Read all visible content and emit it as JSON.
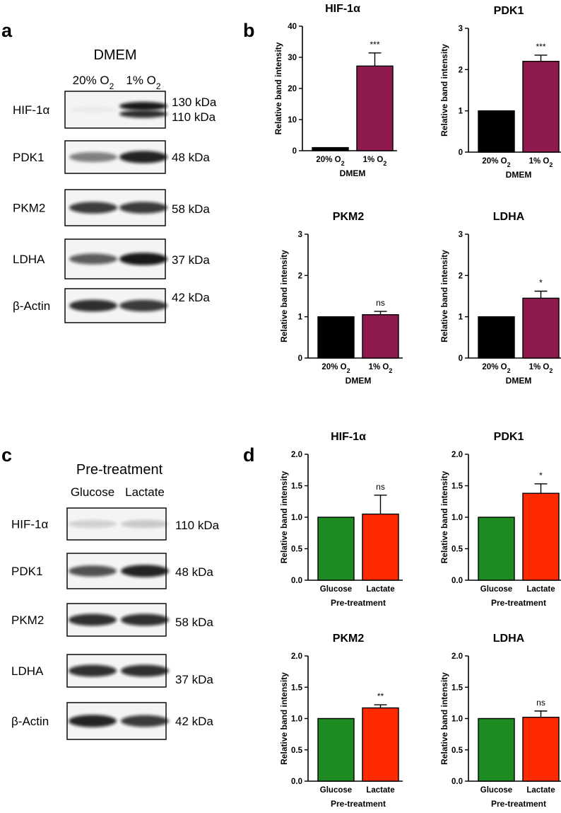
{
  "panels": {
    "a": {
      "letter": "a",
      "heading": "DMEM",
      "conditions": [
        "20% O",
        "1% O"
      ],
      "condition_subscript": "2",
      "blots": [
        {
          "name": "HIF-1α",
          "kda": [
            "130 kDa",
            "110 kDa"
          ],
          "band_strengths": [
            0.03,
            0.95
          ]
        },
        {
          "name": "PDK1",
          "kda": [
            "48 kDa"
          ],
          "band_strengths": [
            0.5,
            0.9
          ]
        },
        {
          "name": "PKM2",
          "kda": [
            "58 kDa"
          ],
          "band_strengths": [
            0.8,
            0.8
          ]
        },
        {
          "name": "LDHA",
          "kda": [
            "37 kDa"
          ],
          "band_strengths": [
            0.65,
            0.95
          ]
        },
        {
          "name": "β-Actin",
          "kda": [
            "42 kDa"
          ],
          "band_strengths": [
            0.85,
            0.8
          ]
        }
      ]
    },
    "b": {
      "letter": "b"
    },
    "c": {
      "letter": "c",
      "heading": "Pre-treatment",
      "conditions": [
        "Glucose",
        "Lactate"
      ],
      "blots": [
        {
          "name": "HIF-1α",
          "kda": [
            "110 kDa"
          ],
          "band_strengths": [
            0.15,
            0.18
          ]
        },
        {
          "name": "PDK1",
          "kda": [
            "48 kDa"
          ],
          "band_strengths": [
            0.7,
            0.9
          ]
        },
        {
          "name": "PKM2",
          "kda": [
            "58 kDa"
          ],
          "band_strengths": [
            0.85,
            0.85
          ]
        },
        {
          "name": "LDHA",
          "kda": [
            "37 kDa"
          ],
          "band_strengths": [
            0.85,
            0.85
          ]
        },
        {
          "name": "β-Actin",
          "kda": [
            "42 kDa"
          ],
          "band_strengths": [
            0.9,
            0.8
          ]
        }
      ]
    },
    "d": {
      "letter": "d"
    }
  },
  "chart_data": [
    {
      "panel": "b",
      "type": "bar",
      "title": "HIF-1α",
      "xlabel": "DMEM",
      "ylabel": "Relative band intensity",
      "categories": [
        "20% O2",
        "1% O2"
      ],
      "values": [
        1,
        27.2
      ],
      "errors": [
        0,
        4.2
      ],
      "ylim": [
        0,
        40
      ],
      "yticks": [
        "0",
        "10",
        "20",
        "30",
        "40"
      ],
      "significance": "***",
      "colors": [
        "#000000",
        "#8e1a4e"
      ]
    },
    {
      "panel": "b",
      "type": "bar",
      "title": "PDK1",
      "xlabel": "DMEM",
      "ylabel": "Relative band intensity",
      "categories": [
        "20% O2",
        "1% O2"
      ],
      "values": [
        1,
        2.2
      ],
      "errors": [
        0,
        0.15
      ],
      "ylim": [
        0,
        3
      ],
      "yticks": [
        "0",
        "1",
        "2",
        "3"
      ],
      "significance": "***",
      "colors": [
        "#000000",
        "#8e1a4e"
      ]
    },
    {
      "panel": "b",
      "type": "bar",
      "title": "PKM2",
      "xlabel": "DMEM",
      "ylabel": "Relative band intensity",
      "categories": [
        "20% O2",
        "1% O2"
      ],
      "values": [
        1,
        1.05
      ],
      "errors": [
        0,
        0.08
      ],
      "ylim": [
        0,
        3
      ],
      "yticks": [
        "0",
        "1",
        "2",
        "3"
      ],
      "significance": "ns",
      "colors": [
        "#000000",
        "#8e1a4e"
      ]
    },
    {
      "panel": "b",
      "type": "bar",
      "title": "LDHA",
      "xlabel": "DMEM",
      "ylabel": "Relative band intensity",
      "categories": [
        "20% O2",
        "1% O2"
      ],
      "values": [
        1,
        1.45
      ],
      "errors": [
        0,
        0.17
      ],
      "ylim": [
        0,
        3
      ],
      "yticks": [
        "0",
        "1",
        "2",
        "3"
      ],
      "significance": "*",
      "colors": [
        "#000000",
        "#8e1a4e"
      ]
    },
    {
      "panel": "d",
      "type": "bar",
      "title": "HIF-1α",
      "xlabel": "Pre-treatment",
      "ylabel": "Relative band intensity",
      "categories": [
        "Glucose",
        "Lactate"
      ],
      "values": [
        1,
        1.05
      ],
      "errors": [
        0,
        0.3
      ],
      "ylim": [
        0,
        2
      ],
      "yticks": [
        "0.0",
        "0.5",
        "1.0",
        "1.5",
        "2.0"
      ],
      "significance": "ns",
      "colors": [
        "#1e8a22",
        "#ff2a00"
      ]
    },
    {
      "panel": "d",
      "type": "bar",
      "title": "PDK1",
      "xlabel": "Pre-treatment",
      "ylabel": "Relative band intensity",
      "categories": [
        "Glucose",
        "Lactate"
      ],
      "values": [
        1,
        1.38
      ],
      "errors": [
        0,
        0.15
      ],
      "ylim": [
        0,
        2
      ],
      "yticks": [
        "0.0",
        "0.5",
        "1.0",
        "1.5",
        "2.0"
      ],
      "significance": "*",
      "colors": [
        "#1e8a22",
        "#ff2a00"
      ]
    },
    {
      "panel": "d",
      "type": "bar",
      "title": "PKM2",
      "xlabel": "Pre-treatment",
      "ylabel": "Relative band intensity",
      "categories": [
        "Glucose",
        "Lactate"
      ],
      "values": [
        1,
        1.17
      ],
      "errors": [
        0,
        0.05
      ],
      "ylim": [
        0,
        2
      ],
      "yticks": [
        "0.0",
        "0.5",
        "1.0",
        "1.5",
        "2.0"
      ],
      "significance": "**",
      "colors": [
        "#1e8a22",
        "#ff2a00"
      ]
    },
    {
      "panel": "d",
      "type": "bar",
      "title": "LDHA",
      "xlabel": "Pre-treatment",
      "ylabel": "Relative band intensity",
      "categories": [
        "Glucose",
        "Lactate"
      ],
      "values": [
        1,
        1.02
      ],
      "errors": [
        0,
        0.1
      ],
      "ylim": [
        0,
        2
      ],
      "yticks": [
        "0.0",
        "0.5",
        "1.0",
        "1.5",
        "2.0"
      ],
      "significance": "ns",
      "colors": [
        "#1e8a22",
        "#ff2a00"
      ]
    }
  ]
}
